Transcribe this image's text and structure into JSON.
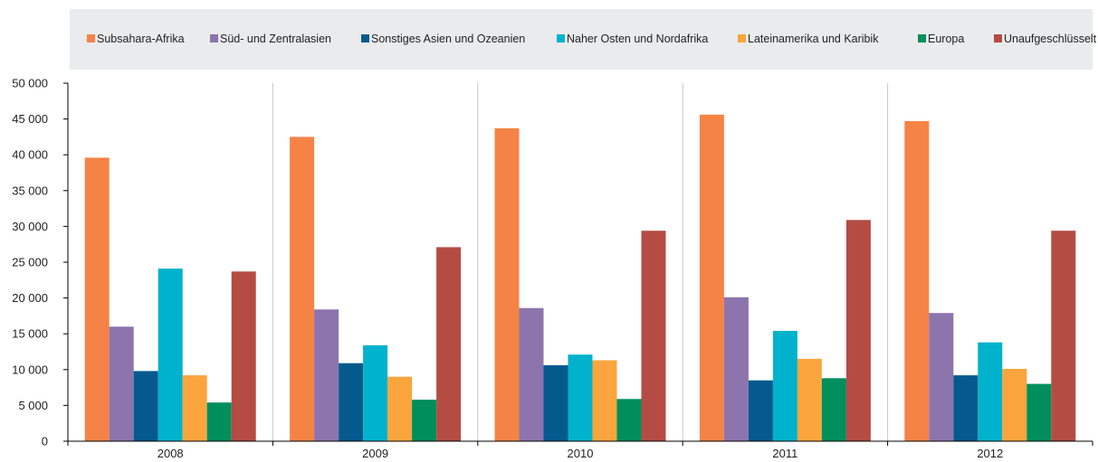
{
  "chart_data": {
    "type": "bar",
    "categories": [
      "2008",
      "2009",
      "2010",
      "2011",
      "2012"
    ],
    "series": [
      {
        "name": "Subsahara-Afrika",
        "color": "#f58345",
        "values": [
          39600,
          42500,
          43700,
          45600,
          44700
        ]
      },
      {
        "name": "Süd- und Zentralasien",
        "color": "#8c74ad",
        "values": [
          16000,
          18400,
          18600,
          20100,
          17900
        ]
      },
      {
        "name": "Sonstiges Asien und Ozeanien",
        "color": "#045a8d",
        "values": [
          9800,
          10900,
          10600,
          8500,
          9200
        ]
      },
      {
        "name": "Naher Osten und Nordafrika",
        "color": "#00b2cc",
        "values": [
          24100,
          13400,
          12100,
          15400,
          13800
        ]
      },
      {
        "name": "Lateinamerika und Karibik",
        "color": "#faa53d",
        "values": [
          9200,
          9000,
          11300,
          11500,
          10100
        ]
      },
      {
        "name": "Europa",
        "color": "#008e5c",
        "values": [
          5400,
          5800,
          5900,
          8800,
          8000
        ]
      },
      {
        "name": "Unaufgeschlüsselt",
        "color": "#b44c43",
        "values": [
          23700,
          27100,
          29400,
          30900,
          29400
        ]
      }
    ],
    "yticks": [
      "0",
      "5 000",
      "10 000",
      "15 000",
      "20 000",
      "25 000",
      "30 000",
      "35 000",
      "40 000",
      "45 000",
      "50 000"
    ],
    "ylim": [
      0,
      50000
    ],
    "legend_position": "top",
    "grid": "vertical category separators",
    "title": "",
    "xlabel": "",
    "ylabel": ""
  }
}
